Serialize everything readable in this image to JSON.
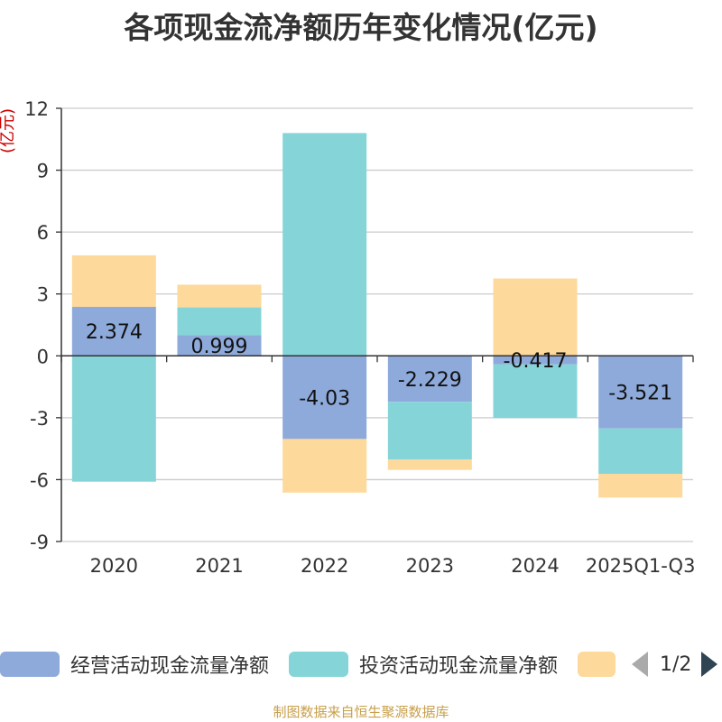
{
  "title": "各项现金流净额历年变化情况(亿元)",
  "source": "制图数据来自恒生聚源数据库",
  "legend": {
    "items": [
      {
        "label": "经营活动现金流量净额",
        "color": "#8eaadb"
      },
      {
        "label": "投资活动现金流量净额",
        "color": "#85d5d8"
      },
      {
        "label": "",
        "color": "#fdd99b"
      }
    ],
    "page": "1/2"
  },
  "chart_data": {
    "type": "bar",
    "stacked": true,
    "title": "各项现金流净额历年变化情况(亿元)",
    "ylabel": "(亿元)",
    "ylim": [
      -9,
      12
    ],
    "yticks": [
      12,
      9,
      6,
      3,
      0,
      -3,
      -6,
      -9
    ],
    "categories": [
      "2020",
      "2021",
      "2022",
      "2023",
      "2024",
      "2025Q1-Q3"
    ],
    "series": [
      {
        "name": "经营活动现金流量净额",
        "color": "#8eaadb",
        "values": [
          2.374,
          0.999,
          -4.03,
          -2.229,
          -0.417,
          -3.521
        ]
      },
      {
        "name": "投资活动现金流量净额",
        "color": "#85d5d8",
        "values": [
          -6.1,
          1.35,
          10.8,
          -2.8,
          -2.6,
          -2.2
        ]
      },
      {
        "name": "",
        "color": "#fdd99b",
        "values": [
          2.5,
          1.1,
          -2.6,
          -0.5,
          3.75,
          -1.15
        ]
      }
    ],
    "data_labels": [
      "2.374",
      "0.999",
      "-4.03",
      "-2.229",
      "-0.417",
      "-3.521"
    ]
  }
}
